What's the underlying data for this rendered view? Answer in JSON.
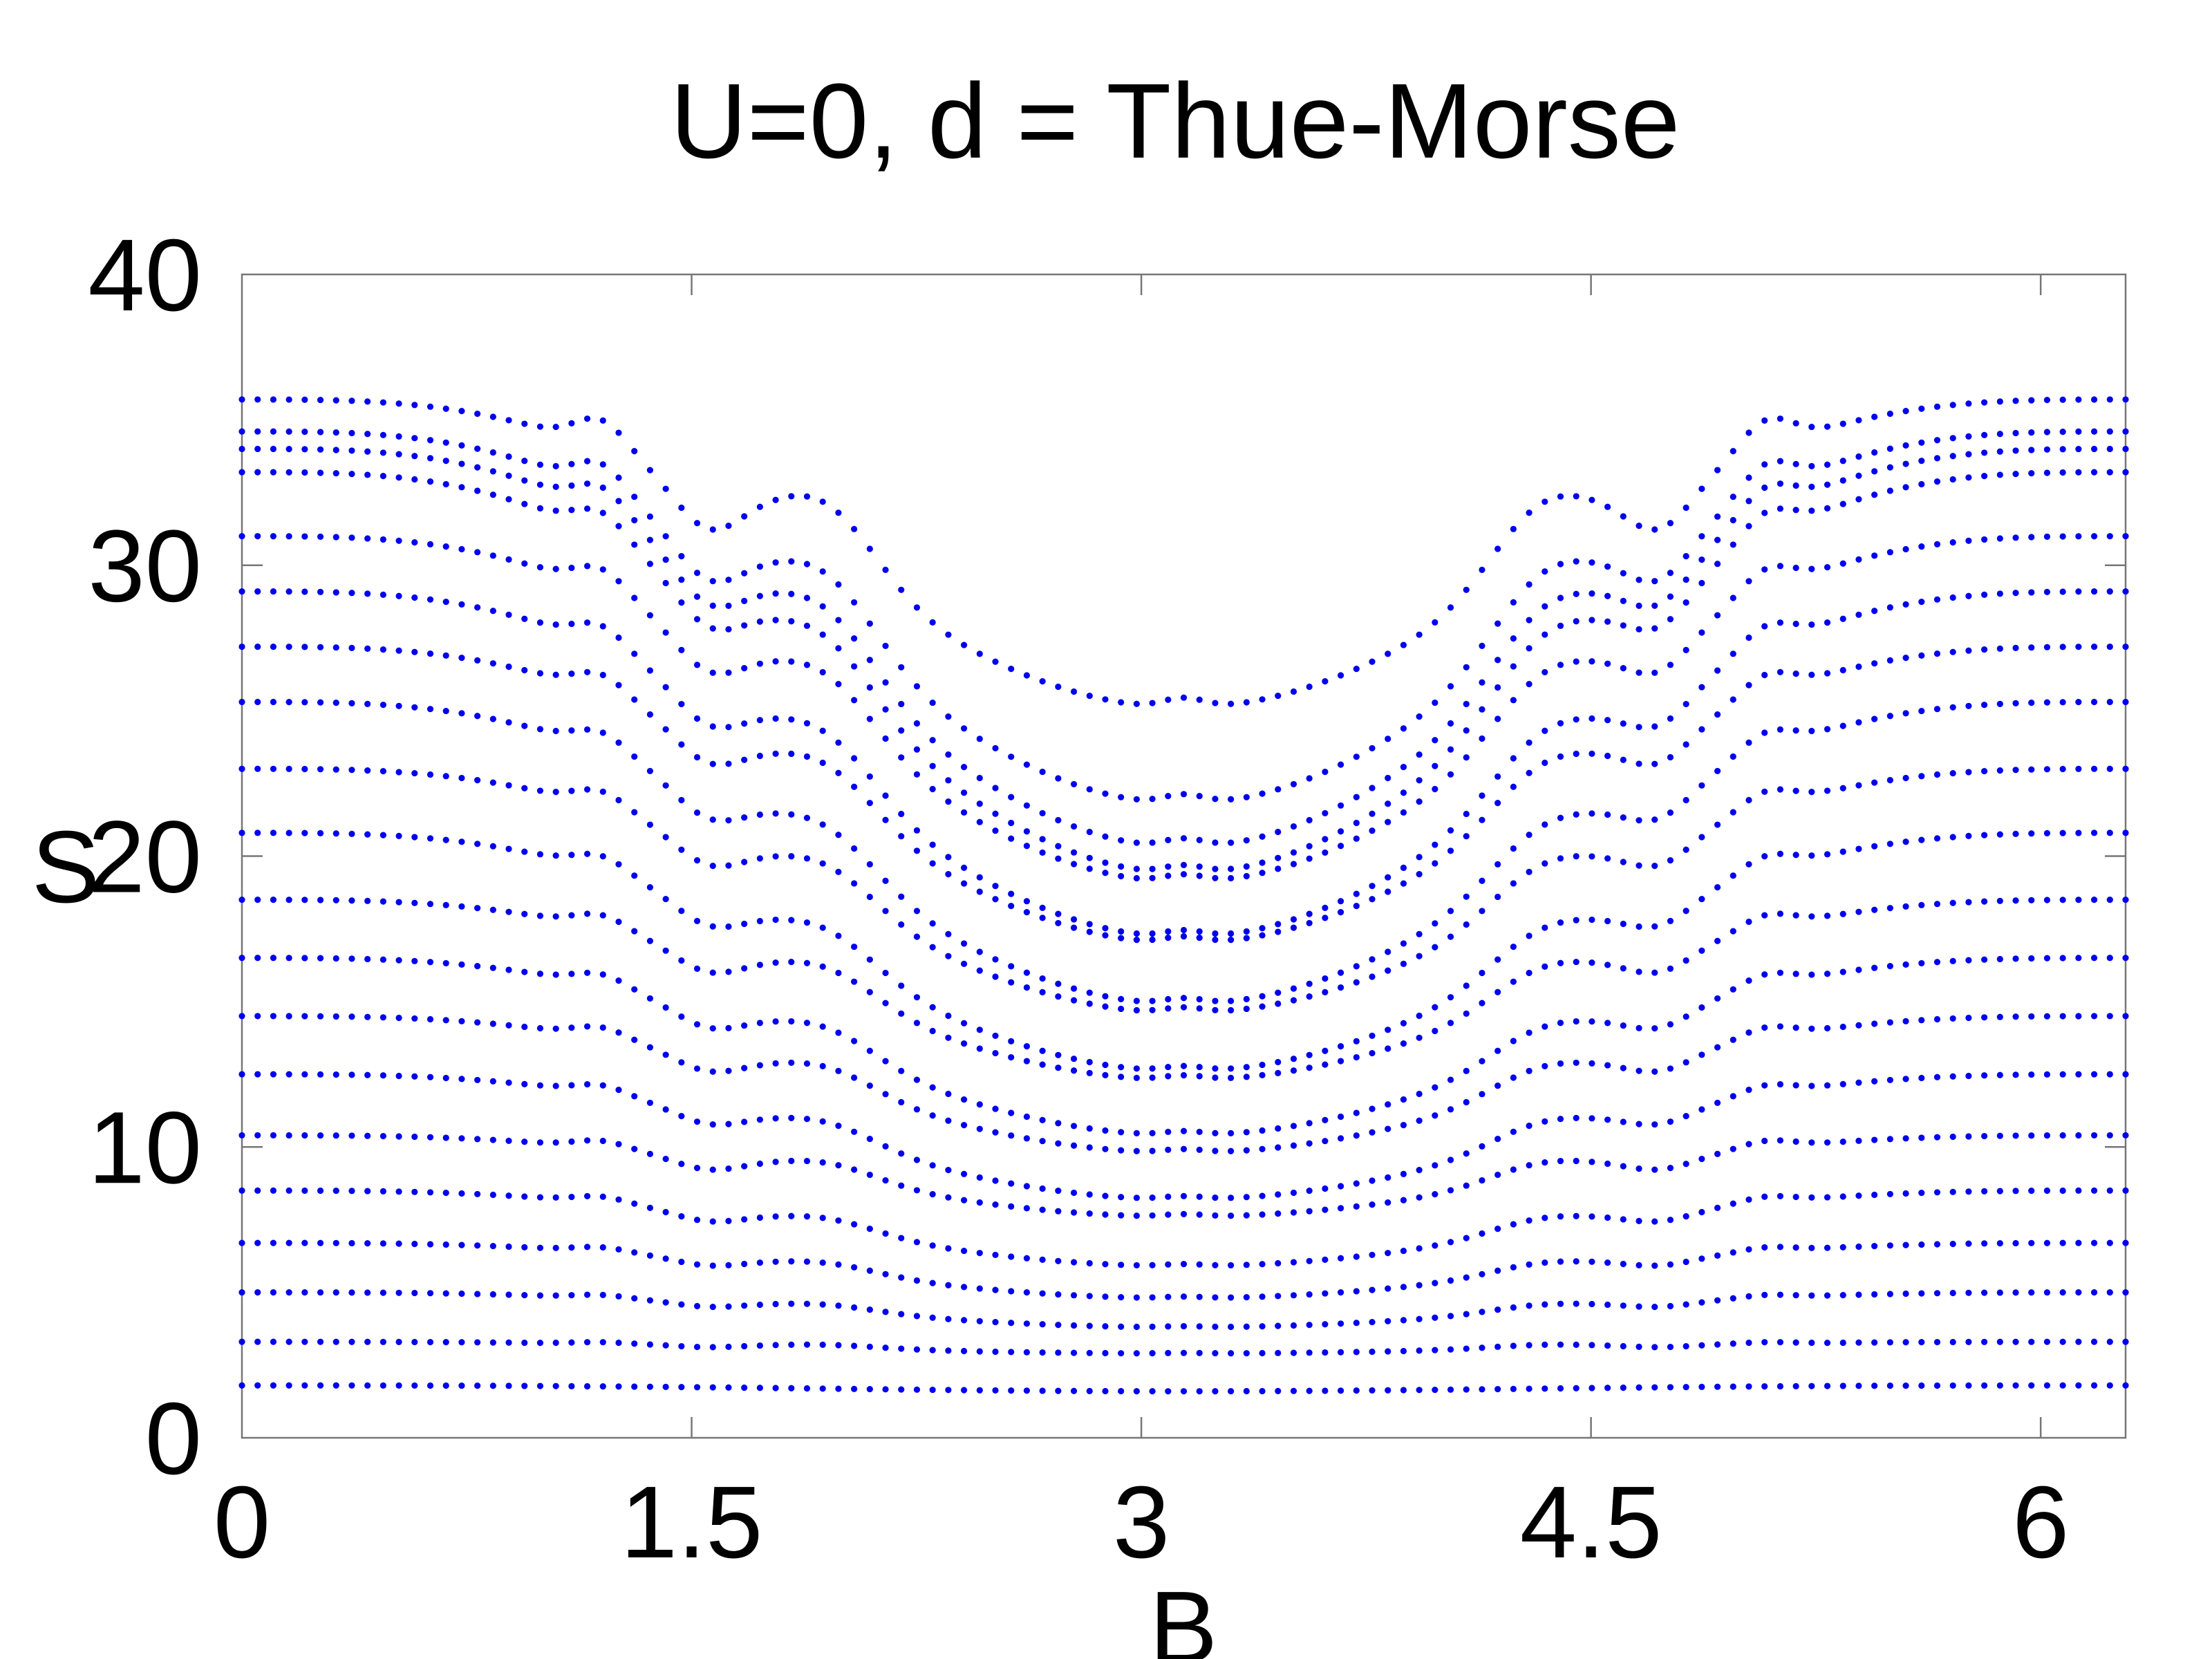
{
  "chart_data": {
    "type": "scatter",
    "title": "U=0, d = Thue-Morse",
    "xlabel": "B",
    "ylabel": "S",
    "xlim": [
      0,
      6.2832
    ],
    "ylim": [
      0,
      40
    ],
    "x_ticks": [
      0,
      1.5,
      3,
      4.5,
      6
    ],
    "x_tick_labels": [
      "0",
      "1.5",
      "3",
      "4.5",
      "6"
    ],
    "y_ticks": [
      0,
      10,
      20,
      30,
      40
    ],
    "y_tick_labels": [
      "0",
      "10",
      "20",
      "30",
      "40"
    ],
    "grid": false,
    "legend": "none",
    "marker_color": "#0000ee",
    "marker": "dot",
    "x_sampling": {
      "start": 0,
      "stop": 6.2832,
      "count": 121
    },
    "series": [
      {
        "level_at_B0": 1.8,
        "level_at_Bpi": 1.6
      },
      {
        "level_at_B0": 3.3,
        "level_at_Bpi": 2.9
      },
      {
        "level_at_B0": 5.0,
        "level_at_Bpi": 3.8
      },
      {
        "level_at_B0": 6.7,
        "level_at_Bpi": 4.8
      },
      {
        "level_at_B0": 8.5,
        "level_at_Bpi": 5.9
      },
      {
        "level_at_B0": 10.4,
        "level_at_Bpi": 7.6
      },
      {
        "level_at_B0": 12.5,
        "level_at_Bpi": 8.2
      },
      {
        "level_at_B0": 14.5,
        "level_at_Bpi": 9.8
      },
      {
        "level_at_B0": 16.5,
        "level_at_Bpi": 10.4
      },
      {
        "level_at_B0": 18.5,
        "level_at_Bpi": 12.3
      },
      {
        "level_at_B0": 20.8,
        "level_at_Bpi": 12.6
      },
      {
        "level_at_B0": 23.0,
        "level_at_Bpi": 14.6
      },
      {
        "level_at_B0": 25.3,
        "level_at_Bpi": 14.9
      },
      {
        "level_at_B0": 27.2,
        "level_at_Bpi": 17.0
      },
      {
        "level_at_B0": 29.1,
        "level_at_Bpi": 17.2
      },
      {
        "level_at_B0": 31.0,
        "level_at_Bpi": 19.1
      },
      {
        "level_at_B0": 33.2,
        "level_at_Bpi": 19.4
      },
      {
        "level_at_B0": 34.0,
        "level_at_Bpi": 20.3
      },
      {
        "level_at_B0": 34.6,
        "level_at_Bpi": 21.8
      },
      {
        "level_at_B0": 35.7,
        "level_at_Bpi": 25.1
      }
    ]
  }
}
